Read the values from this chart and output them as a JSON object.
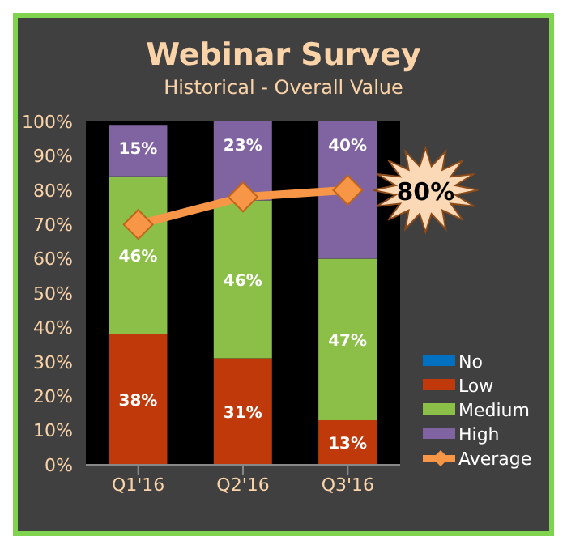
{
  "chart_data": {
    "type": "bar",
    "title": "Webinar Survey",
    "subtitle": "Historical - Overall Value",
    "categories": [
      "Q1'16",
      "Q2'16",
      "Q3'16"
    ],
    "stacked": true,
    "series": [
      {
        "name": "No",
        "color": "#0070c0",
        "values": [
          0,
          0,
          0
        ],
        "value_labels": [
          null,
          null,
          null
        ]
      },
      {
        "name": "Low",
        "color": "#c0390b",
        "values": [
          38,
          31,
          13
        ],
        "value_labels": [
          "38%",
          "31%",
          "13%"
        ]
      },
      {
        "name": "Medium",
        "color": "#8cbf48",
        "values": [
          46,
          46,
          47
        ],
        "value_labels": [
          "46%",
          "46%",
          "47%"
        ]
      },
      {
        "name": "High",
        "color": "#8064a2",
        "values": [
          15,
          23,
          40
        ],
        "value_labels": [
          "15%",
          "23%",
          "40%"
        ]
      },
      {
        "name": "Average",
        "type": "line",
        "color": "#f79646",
        "marker": "diamond",
        "values": [
          70,
          78,
          80
        ],
        "value_labels": [
          null,
          null,
          "80%"
        ]
      }
    ],
    "ylim": [
      0,
      100
    ],
    "yticks": [
      {
        "value": 0,
        "label": "0%"
      },
      {
        "value": 10,
        "label": "10%"
      },
      {
        "value": 20,
        "label": "20%"
      },
      {
        "value": 30,
        "label": "30%"
      },
      {
        "value": 40,
        "label": "40%"
      },
      {
        "value": 50,
        "label": "50%"
      },
      {
        "value": 60,
        "label": "60%"
      },
      {
        "value": 70,
        "label": "70%"
      },
      {
        "value": 80,
        "label": "80%"
      },
      {
        "value": 90,
        "label": "90%"
      },
      {
        "value": 100,
        "label": "100%"
      }
    ],
    "grid": false,
    "legend": "right"
  }
}
